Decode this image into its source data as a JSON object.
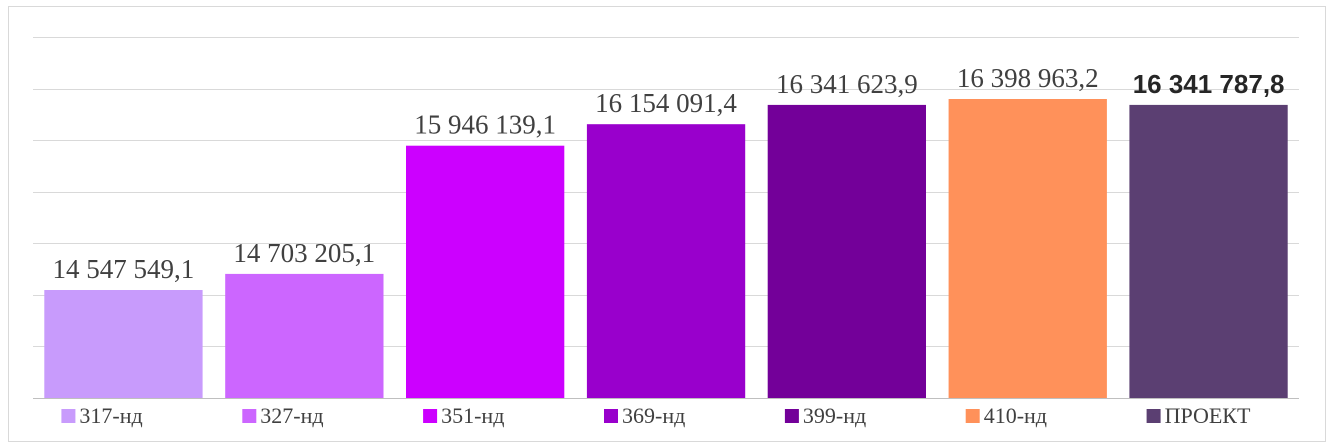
{
  "chart_data": {
    "type": "bar",
    "categories": [
      "317-нд",
      "327-нд",
      "351-нд",
      "369-нд",
      "399-нд",
      "410-нд",
      "ПРОЕКТ"
    ],
    "values": [
      14547549.1,
      14703205.1,
      15946139.1,
      16154091.4,
      16341623.9,
      16398963.2,
      16341787.8
    ],
    "data_labels": [
      "14 547 549,1",
      "14 703 205,1",
      "15 946 139,1",
      "16 154 091,4",
      "16 341 623,9",
      "16 398 963,2",
      "16 341 787,8"
    ],
    "colors": [
      "#c89bfc",
      "#cc66ff",
      "#cc00ff",
      "#9900cc",
      "#730099",
      "#ff915a",
      "#5b3f72"
    ],
    "bold_label_index": 6,
    "ylim": [
      13500000,
      17000000
    ],
    "gridline_step": 500000,
    "grid": true,
    "legend_position": "bottom",
    "title": "",
    "xlabel": "",
    "ylabel": ""
  }
}
